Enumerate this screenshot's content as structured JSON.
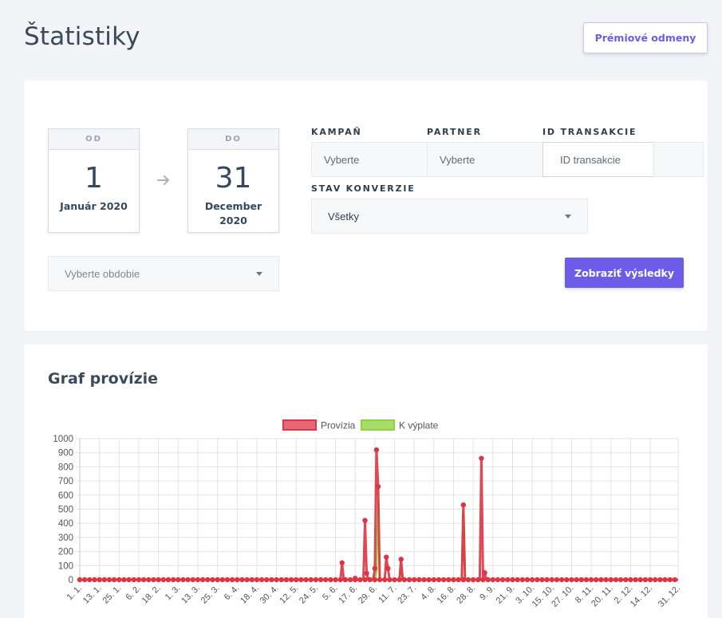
{
  "page": {
    "title": "Štatistiky"
  },
  "header": {
    "premium_button": "Prémiové odmeny"
  },
  "filters": {
    "from": {
      "label": "OD",
      "day": "1",
      "month": "Január 2020"
    },
    "to": {
      "label": "DO",
      "day": "31",
      "month": "December 2020"
    },
    "campaign": {
      "label": "KAMPAŇ",
      "value": "Vyberte"
    },
    "partner": {
      "label": "PARTNER",
      "value": "Vyberte"
    },
    "transaction": {
      "label": "ID TRANSAKCIE",
      "placeholder": "ID transakcie"
    },
    "conversion_status": {
      "label": "STAV KONVERZIE",
      "value": "Všetky"
    },
    "period": {
      "placeholder": "Vyberte obdobie"
    },
    "submit_label": "Zobraziť výsledky"
  },
  "chart_section": {
    "title": "Graf provízie"
  },
  "colors": {
    "accent": "#6c5ce7",
    "provizia": "#dc3545",
    "k_vyplate": "#8cd23a"
  },
  "icons": {
    "date_arrow": "arrow-right-icon",
    "select_caret": "caret-down-icon"
  },
  "chart_data": {
    "type": "line",
    "title": "",
    "xlabel": "",
    "ylabel": "",
    "ylim": [
      0,
      1000
    ],
    "yticks": [
      0,
      100,
      200,
      300,
      400,
      500,
      600,
      700,
      800,
      900,
      1000
    ],
    "grid": true,
    "legend_position": "top",
    "x_ticks": [
      "1. 1.",
      "13. 1.",
      "25. 1.",
      "6. 2.",
      "18. 2.",
      "1. 3.",
      "13. 3.",
      "25. 3.",
      "6. 4.",
      "18. 4.",
      "30. 4.",
      "12. 5.",
      "24. 5.",
      "5. 6.",
      "17. 6.",
      "29. 6.",
      "11. 7.",
      "23. 7.",
      "4. 8.",
      "16. 8.",
      "28. 8.",
      "9. 9.",
      "21. 9.",
      "3. 10.",
      "15. 10.",
      "27. 10.",
      "8. 11.",
      "20. 11.",
      "2. 12.",
      "14. 12.",
      "31. 12."
    ],
    "series": [
      {
        "name": "Provízia",
        "color": "#dc3545",
        "points": [
          [
            0,
            0
          ],
          [
            159,
            0
          ],
          [
            160,
            120
          ],
          [
            161,
            0
          ],
          [
            167,
            0
          ],
          [
            168,
            10
          ],
          [
            169,
            0
          ],
          [
            173,
            0
          ],
          [
            174,
            420
          ],
          [
            175,
            45
          ],
          [
            176,
            0
          ],
          [
            179,
            0
          ],
          [
            180,
            80
          ],
          [
            181,
            920
          ],
          [
            182,
            660
          ],
          [
            183,
            0
          ],
          [
            186,
            0
          ],
          [
            187,
            160
          ],
          [
            188,
            80
          ],
          [
            189,
            0
          ],
          [
            195,
            0
          ],
          [
            196,
            145
          ],
          [
            197,
            0
          ],
          [
            233,
            0
          ],
          [
            234,
            530
          ],
          [
            235,
            0
          ],
          [
            244,
            0
          ],
          [
            245,
            860
          ],
          [
            246,
            0
          ],
          [
            247,
            50
          ],
          [
            248,
            0
          ],
          [
            365,
            0
          ]
        ]
      },
      {
        "name": "K výplate",
        "color": "#8cd23a",
        "points": [
          [
            0,
            0
          ],
          [
            180,
            0
          ],
          [
            181,
            60
          ],
          [
            182,
            560
          ],
          [
            183,
            0
          ],
          [
            195,
            0
          ],
          [
            196,
            100
          ],
          [
            197,
            0
          ],
          [
            233,
            0
          ],
          [
            234,
            480
          ],
          [
            235,
            0
          ],
          [
            365,
            0
          ]
        ]
      }
    ]
  }
}
